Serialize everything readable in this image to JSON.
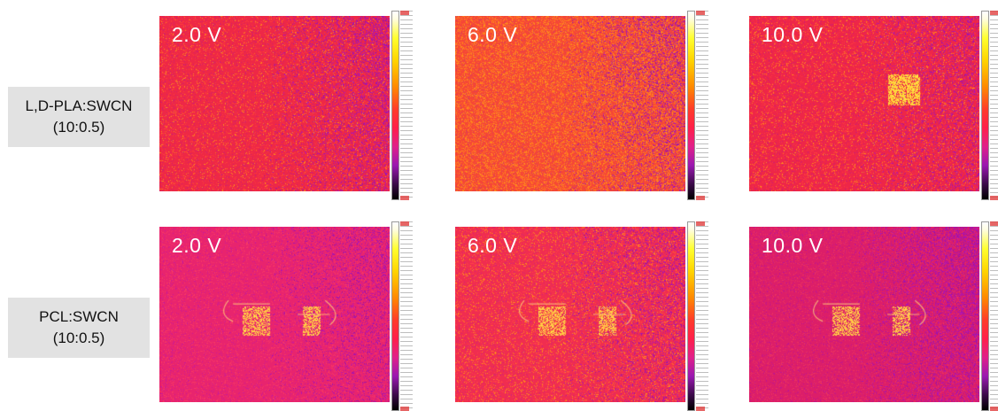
{
  "rows": [
    {
      "label_line1": "L,D-PLA:SWCN",
      "label_line2": "(10:0.5)",
      "panels": [
        {
          "voltage": "2.0 V"
        },
        {
          "voltage": "6.0 V"
        },
        {
          "voltage": "10.0 V"
        }
      ]
    },
    {
      "label_line1": "PCL:SWCN",
      "label_line2": "(10:0.5)",
      "panels": [
        {
          "voltage": "2.0 V"
        },
        {
          "voltage": "6.0 V"
        },
        {
          "voltage": "10.0 V"
        }
      ]
    }
  ]
}
